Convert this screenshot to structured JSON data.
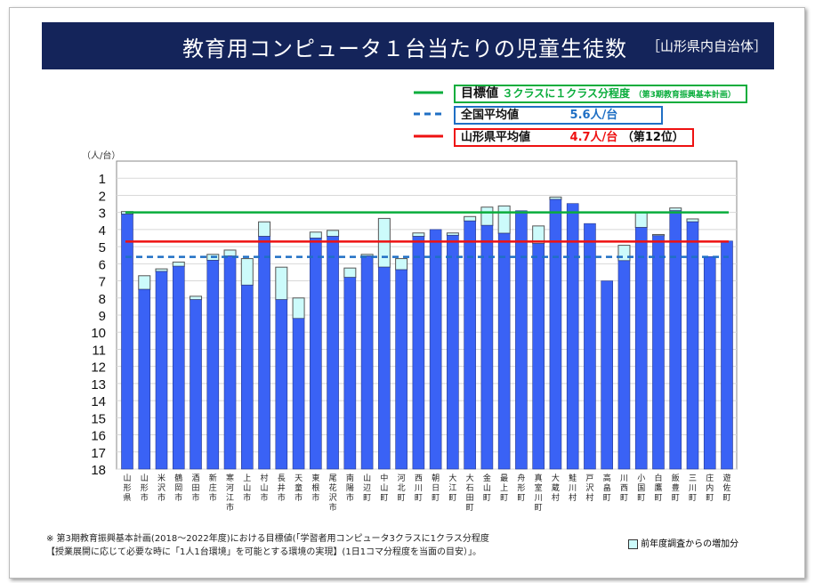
{
  "header": {
    "title": "教育用コンピュータ１台当たりの児童生徒数",
    "subtitle": "［山形県内自治体］"
  },
  "legend": {
    "target": {
      "label": "目標値",
      "value": "３クラスに１クラス分程度",
      "note": "（第3期教育振興基本計画）",
      "color": "#0aad3c"
    },
    "national": {
      "label": "全国平均値",
      "value": "5.6人/台",
      "color": "#1f6fc4"
    },
    "prefecture": {
      "label": "山形県平均値",
      "value": "4.7人/台",
      "rank": "（第12位）",
      "color": "#ee1111"
    },
    "increase": {
      "label": "前年度調査からの増加分",
      "color": "#ccfbfb"
    }
  },
  "notes": [
    "※ 第3期教育振興基本計画(2018～2022年度)における目標値(「学習者用コンピュータ3クラスに1クラス分程度",
    "【授業展開に応じて必要な時に「1人1台環境」を可能とする環境の実現】(1日1コマ分程度を当面の目安）」。"
  ],
  "chart_data": {
    "type": "bar",
    "ylabel": "（人/台）",
    "ylim": [
      0,
      18
    ],
    "y_inverted": true,
    "yticks": [
      1,
      2,
      3,
      4,
      5,
      6,
      7,
      8,
      9,
      10,
      11,
      12,
      13,
      14,
      15,
      16,
      17,
      18
    ],
    "grid": true,
    "bar_color": "#3a62f5",
    "categories": [
      "山形県",
      "山形市",
      "米沢市",
      "鶴岡市",
      "酒田市",
      "新庄市",
      "寒河江市",
      "上山市",
      "村山市",
      "長井市",
      "天童市",
      "東根市",
      "尾花沢市",
      "南陽市",
      "山辺町",
      "中山町",
      "河北町",
      "西川町",
      "朝日町",
      "大江町",
      "大石田町",
      "金山町",
      "最上町",
      "舟形町",
      "真室川町",
      "大蔵村",
      "鮭川村",
      "戸沢村",
      "高畠町",
      "川西町",
      "小国町",
      "白鷹町",
      "飯豊町",
      "三川町",
      "庄内町",
      "遊佐町"
    ],
    "series": [
      {
        "name": "",
        "values": [
          3.1,
          7.5,
          6.45,
          6.15,
          8.1,
          5.8,
          5.55,
          7.25,
          4.4,
          8.1,
          9.2,
          4.5,
          4.4,
          6.8,
          5.55,
          6.2,
          6.35,
          4.4,
          4.0,
          4.34,
          3.5,
          3.76,
          4.22,
          2.9,
          4.82,
          2.24,
          2.48,
          3.65,
          7.0,
          5.82,
          3.88,
          4.36,
          2.9,
          3.55,
          5.58,
          4.67
        ]
      },
      {
        "name": "前年度調査からの増加分",
        "values": [
          2.95,
          6.7,
          6.3,
          5.9,
          7.9,
          5.45,
          5.2,
          5.7,
          3.55,
          6.2,
          8.0,
          4.15,
          4.05,
          6.25,
          5.45,
          3.35,
          5.7,
          4.2,
          4.0,
          4.2,
          3.24,
          2.69,
          2.62,
          2.9,
          3.79,
          2.1,
          2.48,
          3.65,
          7.0,
          4.92,
          3.0,
          4.29,
          2.74,
          3.38,
          5.58,
          4.67
        ]
      }
    ],
    "reference_lines": [
      {
        "name": "目標値",
        "value": 3.0,
        "style": "solid",
        "color": "#0aad3c"
      },
      {
        "name": "全国平均値",
        "value": 5.6,
        "style": "dashed",
        "color": "#1f6fc4"
      },
      {
        "name": "山形県平均値",
        "value": 4.7,
        "style": "solid",
        "color": "#ee1111"
      }
    ]
  }
}
